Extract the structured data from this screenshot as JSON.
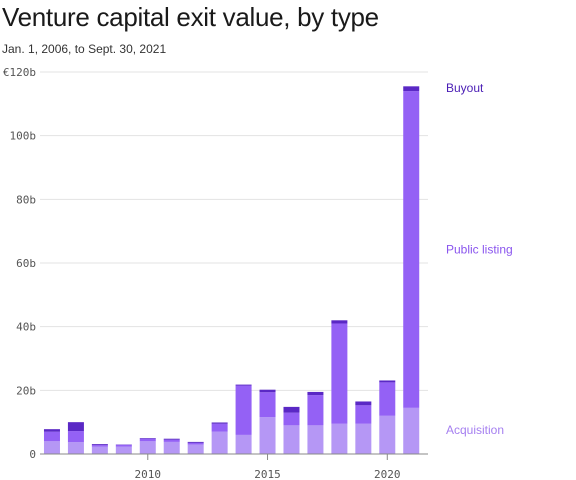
{
  "title": "Venture capital exit value, by type",
  "subtitle": "Jan. 1, 2006, to Sept. 30, 2021",
  "chart_data": {
    "type": "bar",
    "stacked": true,
    "x": [
      2006,
      2007,
      2008,
      2009,
      2010,
      2011,
      2012,
      2013,
      2014,
      2015,
      2016,
      2017,
      2018,
      2019,
      2020,
      2021
    ],
    "x_ticks": [
      {
        "value": 2010,
        "label": "2010"
      },
      {
        "value": 2015,
        "label": "2015"
      },
      {
        "value": 2020,
        "label": "2020"
      }
    ],
    "y_ticks": [
      {
        "value": 0,
        "label": "0"
      },
      {
        "value": 20,
        "label": "20b"
      },
      {
        "value": 40,
        "label": "40b"
      },
      {
        "value": 60,
        "label": "60b"
      },
      {
        "value": 80,
        "label": "80b"
      },
      {
        "value": 100,
        "label": "100b"
      },
      {
        "value": 120,
        "label": "€120b"
      }
    ],
    "ylim": [
      0,
      120
    ],
    "grid": true,
    "legend": "inline-right",
    "series": [
      {
        "name": "Acquisition",
        "color": "#b597f5",
        "values": [
          4.0,
          3.7,
          2.3,
          2.3,
          4.0,
          3.8,
          3.0,
          7.0,
          6.0,
          11.6,
          9.0,
          9.0,
          9.5,
          9.5,
          12.0,
          14.5
        ]
      },
      {
        "name": "Public listing",
        "color": "#9461f5",
        "values": [
          3.0,
          3.5,
          0.5,
          0.6,
          0.8,
          0.7,
          0.5,
          2.5,
          15.5,
          7.8,
          4.0,
          9.5,
          31.5,
          5.8,
          10.5,
          99.5
        ]
      },
      {
        "name": "Buyout",
        "color": "#5a28c5",
        "values": [
          0.8,
          2.8,
          0.3,
          0.1,
          0.2,
          0.3,
          0.3,
          0.4,
          0.3,
          0.8,
          1.8,
          1.0,
          1.0,
          1.2,
          0.6,
          1.5
        ]
      }
    ]
  }
}
